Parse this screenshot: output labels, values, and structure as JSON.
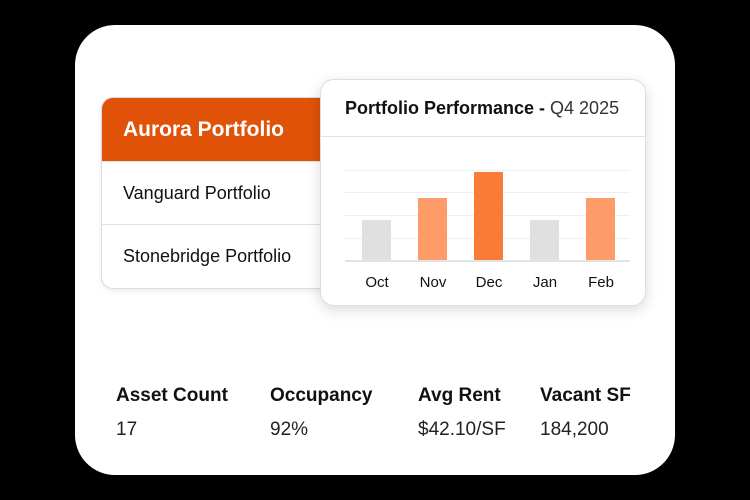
{
  "portfolios": {
    "items": [
      {
        "label": "Aurora Portfolio",
        "active": true
      },
      {
        "label": "Vanguard Portfolio",
        "active": false
      },
      {
        "label": "Stonebridge Portfolio",
        "active": false
      }
    ]
  },
  "chart_card": {
    "title_bold": "Portfolio Performance -",
    "title_light": "Q4 2025"
  },
  "chart_data": {
    "type": "bar",
    "title": "Portfolio Performance - Q4 2025",
    "categories": [
      "Oct",
      "Nov",
      "Dec",
      "Jan",
      "Feb"
    ],
    "values": [
      40,
      62,
      88,
      40,
      62
    ],
    "colors": [
      "#e0e0e0",
      "#fd9b69",
      "#fa7b35",
      "#e0e0e0",
      "#fd9b69"
    ],
    "xlabel": "",
    "ylabel": "",
    "ylim": [
      0,
      92
    ],
    "grid": true,
    "legend": null,
    "note": "No y-axis tick labels shown; values are relative bar heights in px"
  },
  "stats": [
    {
      "label": "Asset Count",
      "value": "17"
    },
    {
      "label": "Occupancy",
      "value": "92%"
    },
    {
      "label": "Avg Rent",
      "value": "$42.10/SF"
    },
    {
      "label": "Vacant SF",
      "value": "184,200"
    }
  ],
  "colors": {
    "accent": "#e05208",
    "bar_highlight": "#fa7b35",
    "bar_secondary": "#fd9b69",
    "bar_muted": "#e0e0e0"
  }
}
